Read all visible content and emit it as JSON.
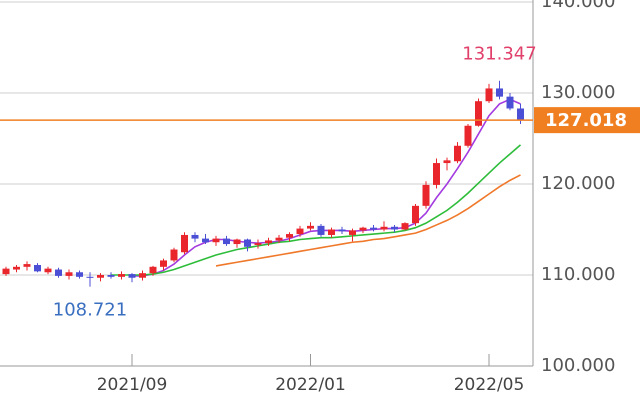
{
  "chart_data": {
    "type": "candlestick",
    "categories": [
      null,
      null,
      null,
      null,
      null,
      null,
      null,
      null,
      null,
      null,
      null,
      null,
      "2021/09",
      null,
      null,
      null,
      null,
      null,
      null,
      null,
      null,
      null,
      null,
      null,
      null,
      null,
      null,
      null,
      null,
      "2022/01",
      null,
      null,
      null,
      null,
      null,
      null,
      null,
      null,
      null,
      null,
      null,
      null,
      null,
      null,
      null,
      null,
      "2022/05",
      null,
      null,
      null
    ],
    "open": [
      110.1,
      110.6,
      110.9,
      111.1,
      110.3,
      110.6,
      109.9,
      110.3,
      109.8,
      109.7,
      110.0,
      109.8,
      110.1,
      109.7,
      110.2,
      110.9,
      111.6,
      112.5,
      114.4,
      114.0,
      113.6,
      114.0,
      113.4,
      113.9,
      113.3,
      113.5,
      113.8,
      114.1,
      114.5,
      115.1,
      115.4,
      114.4,
      115.0,
      114.4,
      114.9,
      115.2,
      115.0,
      115.3,
      115.0,
      115.7,
      117.6,
      119.9,
      122.3,
      122.5,
      124.2,
      126.4,
      129.1,
      130.5,
      129.6,
      128.3
    ],
    "high": [
      110.9,
      111.1,
      111.5,
      111.3,
      110.9,
      110.8,
      110.6,
      110.5,
      110.3,
      110.2,
      110.3,
      110.4,
      110.2,
      110.5,
      111.0,
      111.8,
      113.0,
      114.7,
      114.7,
      114.5,
      114.3,
      114.3,
      114.0,
      114.0,
      113.9,
      114.1,
      114.4,
      114.7,
      115.4,
      115.8,
      115.6,
      115.2,
      115.3,
      115.1,
      115.3,
      115.5,
      115.9,
      115.5,
      115.8,
      117.8,
      120.3,
      122.8,
      122.9,
      124.6,
      126.6,
      129.4,
      131.0,
      131.347,
      130.0,
      128.8
    ],
    "low": [
      109.9,
      110.3,
      110.5,
      110.3,
      110.1,
      109.7,
      109.5,
      109.6,
      108.721,
      109.3,
      109.6,
      109.5,
      109.2,
      109.4,
      109.9,
      110.5,
      111.4,
      112.3,
      113.6,
      113.4,
      113.2,
      113.2,
      113.0,
      112.6,
      112.9,
      113.2,
      113.5,
      113.7,
      114.2,
      114.9,
      114.2,
      114.1,
      114.5,
      113.7,
      114.6,
      114.8,
      114.8,
      114.7,
      114.9,
      115.4,
      117.3,
      119.5,
      121.5,
      122.3,
      124.0,
      126.3,
      128.9,
      129.3,
      128.1,
      126.6
    ],
    "close": [
      110.7,
      110.9,
      111.2,
      110.4,
      110.7,
      109.9,
      110.3,
      109.8,
      109.7,
      110.0,
      109.8,
      110.1,
      109.7,
      110.2,
      110.9,
      111.6,
      112.8,
      114.4,
      114.0,
      113.6,
      114.0,
      113.4,
      113.9,
      113.1,
      113.5,
      113.8,
      114.1,
      114.5,
      115.1,
      115.4,
      114.4,
      115.0,
      114.8,
      114.9,
      115.2,
      115.0,
      115.3,
      115.0,
      115.7,
      117.6,
      119.9,
      122.3,
      122.6,
      124.2,
      126.4,
      129.1,
      130.5,
      129.6,
      128.3,
      127.018
    ],
    "up_color": "#e8262c",
    "down_color": "#4b4fd6",
    "series": [
      {
        "color": "#a43be0",
        "values": [
          null,
          null,
          null,
          null,
          null,
          null,
          null,
          null,
          null,
          null,
          null,
          null,
          109.9,
          109.9,
          110.1,
          110.5,
          111.2,
          112.2,
          113.1,
          113.6,
          113.9,
          113.9,
          113.7,
          113.6,
          113.5,
          113.6,
          113.7,
          114.0,
          114.4,
          114.8,
          114.9,
          114.9,
          114.9,
          114.8,
          114.9,
          115.0,
          115.1,
          115.1,
          115.2,
          115.7,
          116.8,
          118.5,
          120.0,
          121.7,
          123.5,
          125.5,
          127.5,
          128.8,
          129.3,
          128.8
        ]
      },
      {
        "color": "#2ebd3a",
        "values": [
          null,
          null,
          null,
          null,
          null,
          null,
          null,
          null,
          null,
          null,
          110.0,
          110.0,
          110.0,
          110.0,
          110.1,
          110.3,
          110.6,
          111.0,
          111.4,
          111.8,
          112.2,
          112.5,
          112.8,
          113.0,
          113.2,
          113.4,
          113.6,
          113.7,
          113.9,
          114.0,
          114.1,
          114.1,
          114.2,
          114.3,
          114.4,
          114.5,
          114.6,
          114.7,
          114.9,
          115.2,
          115.7,
          116.4,
          117.1,
          118.0,
          119.0,
          120.1,
          121.2,
          122.3,
          123.3,
          124.3
        ]
      },
      {
        "color": "#f0782a",
        "values": [
          null,
          null,
          null,
          null,
          null,
          null,
          null,
          null,
          null,
          null,
          null,
          null,
          null,
          null,
          null,
          null,
          null,
          null,
          null,
          null,
          111.0,
          111.2,
          111.4,
          111.6,
          111.8,
          112.0,
          112.2,
          112.4,
          112.6,
          112.8,
          113.0,
          113.2,
          113.4,
          113.6,
          113.7,
          113.9,
          114.0,
          114.2,
          114.4,
          114.6,
          115.0,
          115.5,
          116.0,
          116.6,
          117.3,
          118.1,
          118.9,
          119.7,
          120.4,
          121.0
        ]
      }
    ],
    "ylim": [
      100,
      140
    ],
    "yticks": [
      {
        "value": 100,
        "label": "100.000"
      },
      {
        "value": 110,
        "label": "110.000"
      },
      {
        "value": 120,
        "label": "120.000"
      },
      {
        "value": 130,
        "label": "130.000"
      },
      {
        "value": 140,
        "label": "140.000"
      }
    ],
    "grid": true,
    "last_price_color": "#f07f22",
    "high_label_color": "#e0406a",
    "low_label_color": "#3a6fc0"
  }
}
